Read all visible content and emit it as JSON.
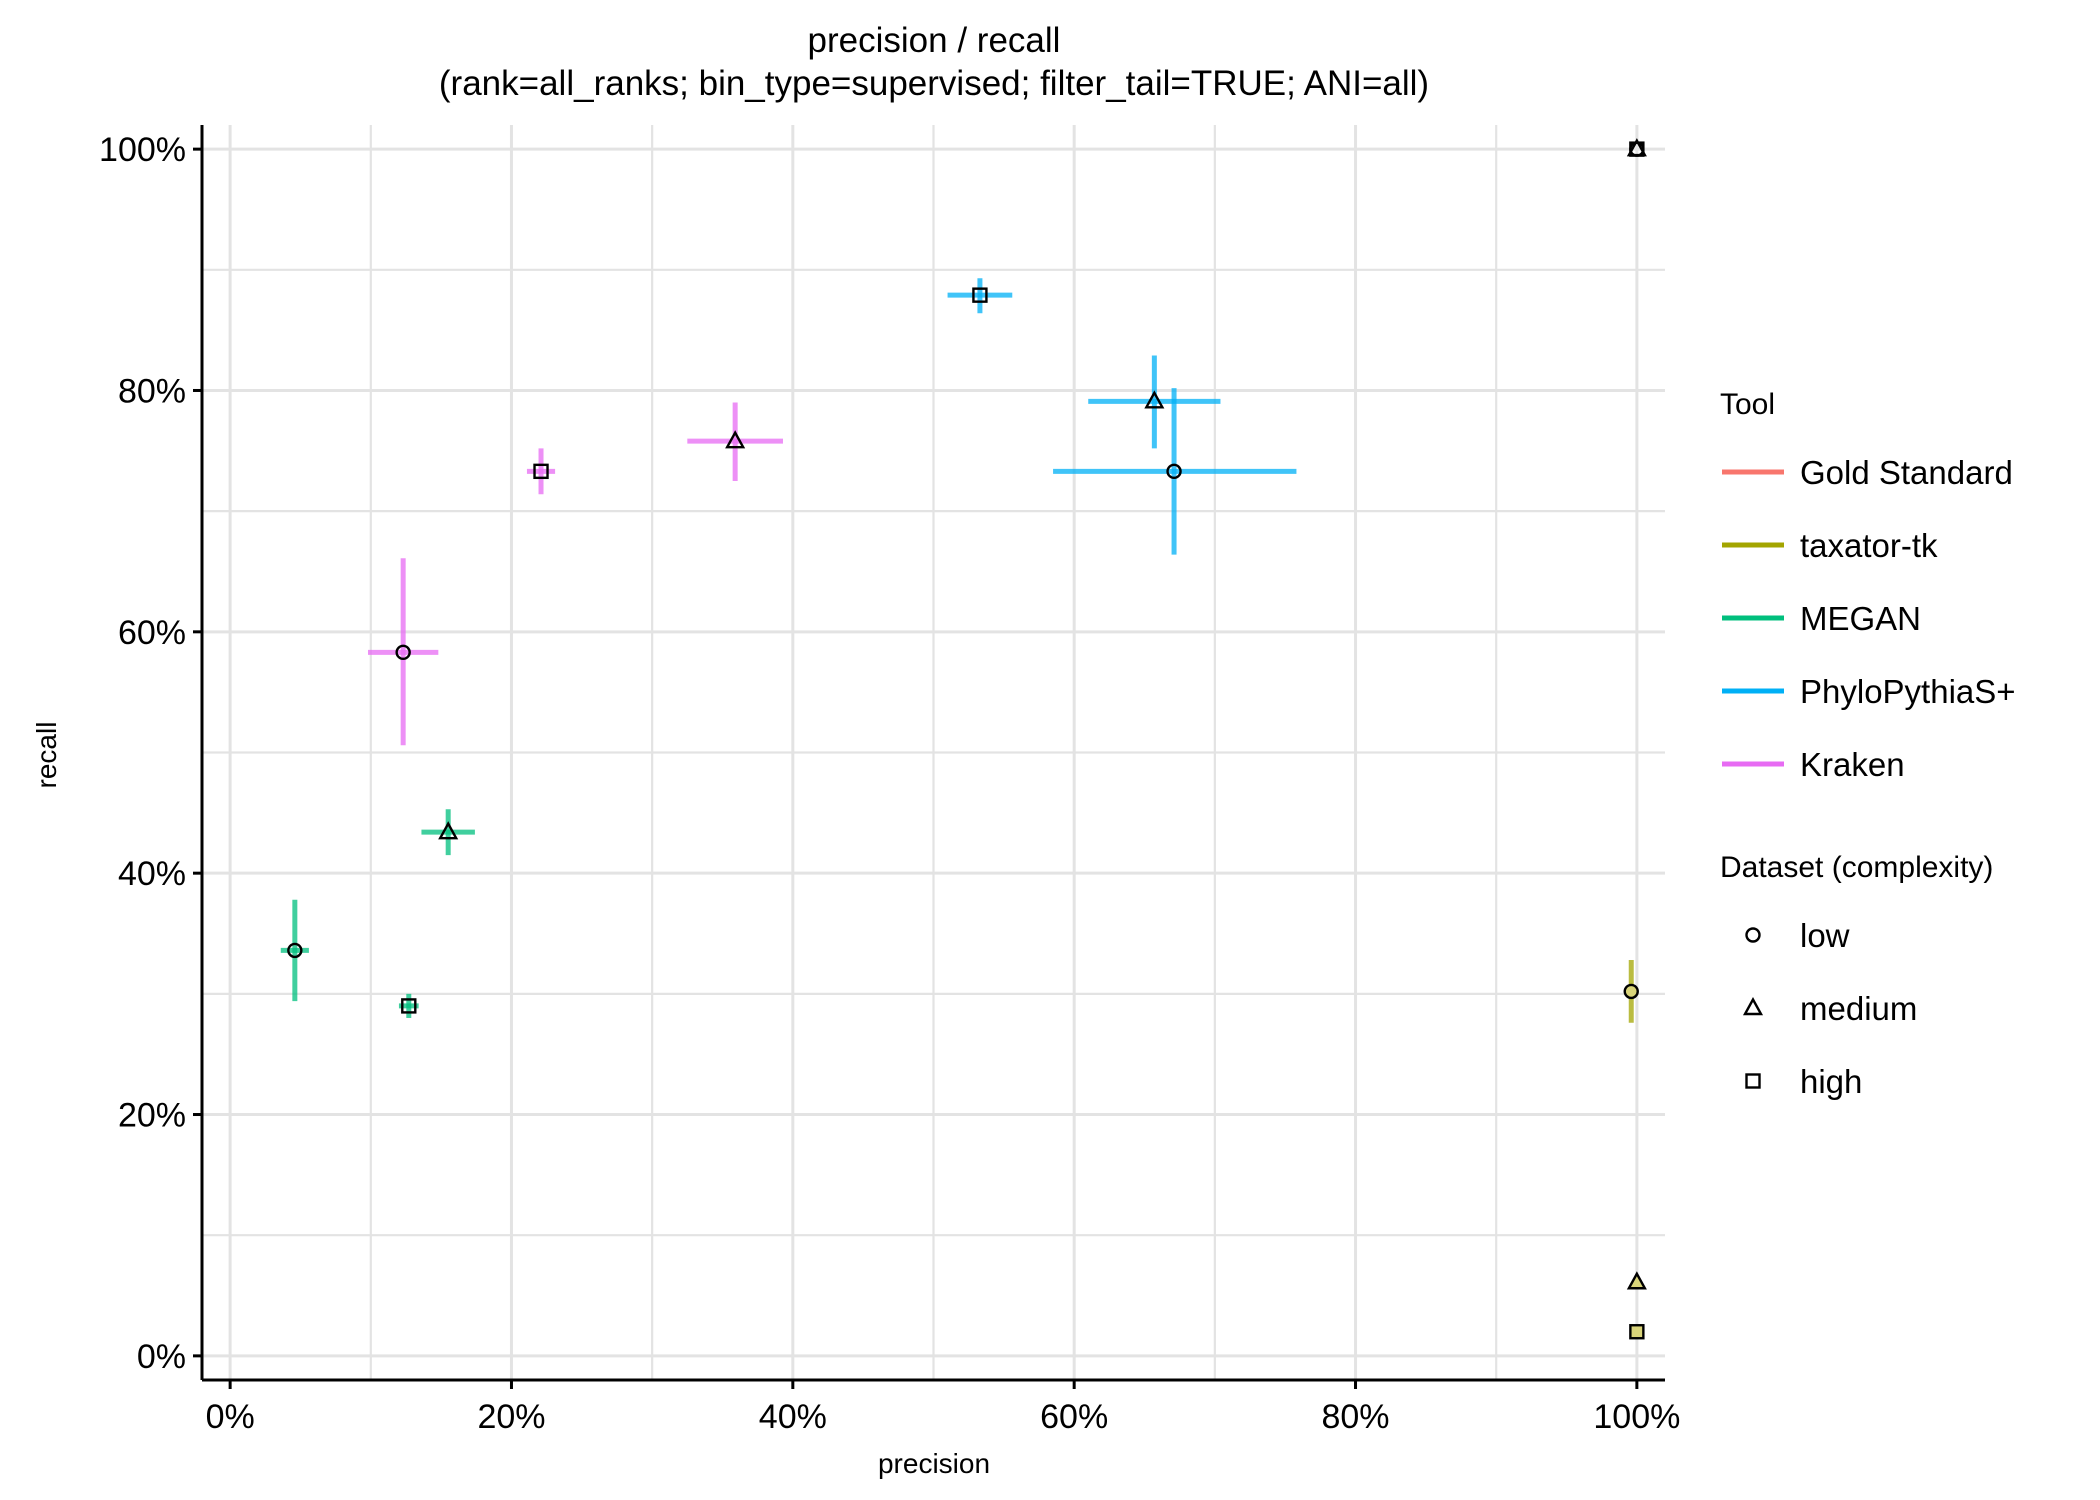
{
  "chart_data": {
    "type": "scatter",
    "title": "precision / recall",
    "subtitle": "(rank=all_ranks; bin_type=supervised; filter_tail=TRUE; ANI=all)",
    "xlabel": "precision",
    "ylabel": "recall",
    "xlim": [
      -2,
      102
    ],
    "ylim": [
      -2,
      102
    ],
    "x_ticks": [
      0,
      20,
      40,
      60,
      80,
      100
    ],
    "x_tick_labels": [
      "0%",
      "20%",
      "40%",
      "60%",
      "80%",
      "100%"
    ],
    "y_ticks": [
      0,
      20,
      40,
      60,
      80,
      100
    ],
    "y_tick_labels": [
      "0%",
      "20%",
      "40%",
      "60%",
      "80%",
      "100%"
    ],
    "grid": true,
    "legend_position": "right",
    "tool_legend_title": "Tool",
    "shape_legend_title": "Dataset (complexity)",
    "tools": [
      {
        "name": "Gold Standard",
        "color": "#F8766D"
      },
      {
        "name": "taxator-tk",
        "color": "#A3A500"
      },
      {
        "name": "MEGAN",
        "color": "#00BF7D"
      },
      {
        "name": "PhyloPythiaS+",
        "color": "#00B0F6"
      },
      {
        "name": "Kraken",
        "color": "#E76BF3"
      }
    ],
    "datasets": [
      {
        "name": "low",
        "shape": "circle"
      },
      {
        "name": "medium",
        "shape": "triangle"
      },
      {
        "name": "high",
        "shape": "square"
      }
    ],
    "points": [
      {
        "tool": "Gold Standard",
        "dataset": "low",
        "x": 100,
        "y": 100,
        "x_err": [
          100,
          100
        ],
        "y_err": [
          100,
          100
        ]
      },
      {
        "tool": "Gold Standard",
        "dataset": "medium",
        "x": 100,
        "y": 100,
        "x_err": [
          100,
          100
        ],
        "y_err": [
          100,
          100
        ]
      },
      {
        "tool": "Gold Standard",
        "dataset": "high",
        "x": 100,
        "y": 100,
        "x_err": [
          100,
          100
        ],
        "y_err": [
          100,
          100
        ]
      },
      {
        "tool": "taxator-tk",
        "dataset": "low",
        "x": 99.6,
        "y": 30.2,
        "x_err": [
          99.4,
          99.8
        ],
        "y_err": [
          27.6,
          32.8
        ]
      },
      {
        "tool": "taxator-tk",
        "dataset": "medium",
        "x": 100,
        "y": 6.1,
        "x_err": [
          100,
          100
        ],
        "y_err": [
          6.1,
          6.1
        ]
      },
      {
        "tool": "taxator-tk",
        "dataset": "high",
        "x": 100,
        "y": 2.0,
        "x_err": [
          100,
          100
        ],
        "y_err": [
          2.0,
          2.0
        ]
      },
      {
        "tool": "MEGAN",
        "dataset": "low",
        "x": 4.6,
        "y": 33.6,
        "x_err": [
          3.6,
          5.6
        ],
        "y_err": [
          29.4,
          37.8
        ]
      },
      {
        "tool": "MEGAN",
        "dataset": "medium",
        "x": 15.5,
        "y": 43.4,
        "x_err": [
          13.6,
          17.4
        ],
        "y_err": [
          41.5,
          45.3
        ]
      },
      {
        "tool": "MEGAN",
        "dataset": "high",
        "x": 12.7,
        "y": 29.0,
        "x_err": [
          12.0,
          13.4
        ],
        "y_err": [
          28.0,
          30.0
        ]
      },
      {
        "tool": "PhyloPythiaS+",
        "dataset": "low",
        "x": 67.1,
        "y": 73.3,
        "x_err": [
          58.5,
          75.8
        ],
        "y_err": [
          66.4,
          80.2
        ]
      },
      {
        "tool": "PhyloPythiaS+",
        "dataset": "medium",
        "x": 65.7,
        "y": 79.1,
        "x_err": [
          61.0,
          70.4
        ],
        "y_err": [
          75.2,
          82.9
        ]
      },
      {
        "tool": "PhyloPythiaS+",
        "dataset": "high",
        "x": 53.3,
        "y": 87.9,
        "x_err": [
          51.0,
          55.6
        ],
        "y_err": [
          86.4,
          89.3
        ]
      },
      {
        "tool": "Kraken",
        "dataset": "low",
        "x": 12.3,
        "y": 58.3,
        "x_err": [
          9.8,
          14.8
        ],
        "y_err": [
          50.6,
          66.1
        ]
      },
      {
        "tool": "Kraken",
        "dataset": "medium",
        "x": 35.9,
        "y": 75.8,
        "x_err": [
          32.5,
          39.3
        ],
        "y_err": [
          72.5,
          79.0
        ]
      },
      {
        "tool": "Kraken",
        "dataset": "high",
        "x": 22.1,
        "y": 73.3,
        "x_err": [
          21.1,
          23.1
        ],
        "y_err": [
          71.4,
          75.2
        ]
      }
    ]
  }
}
